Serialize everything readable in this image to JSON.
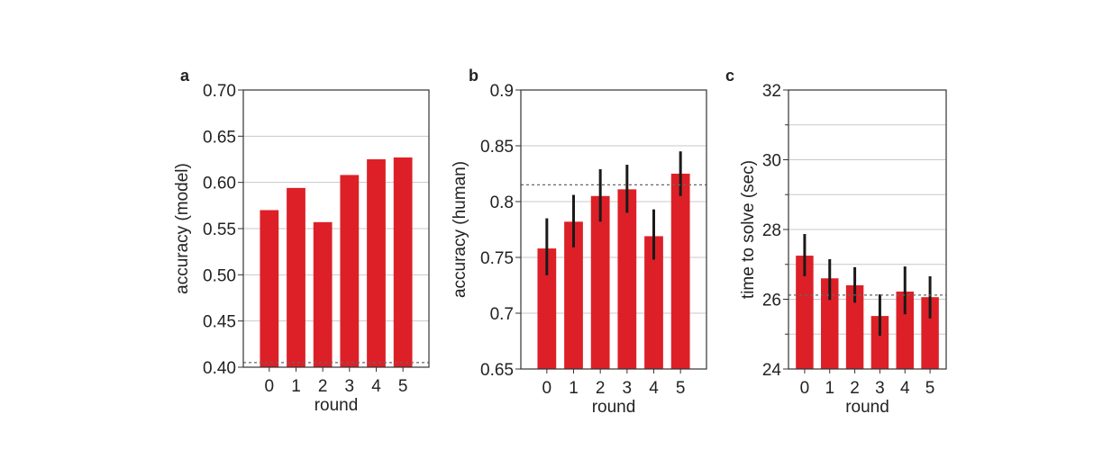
{
  "bar_color": "#dd2027",
  "chart_data": [
    {
      "type": "bar",
      "panel_label": "a",
      "xlabel": "round",
      "ylabel": "accuracy (model)",
      "categories": [
        "0",
        "1",
        "2",
        "3",
        "4",
        "5"
      ],
      "values": [
        0.57,
        0.594,
        0.557,
        0.608,
        0.625,
        0.627
      ],
      "ylim": [
        0.4,
        0.7
      ],
      "yticks": [
        "0.40",
        "0.45",
        "0.50",
        "0.55",
        "0.60",
        "0.65",
        "0.70"
      ],
      "reference_line": 0.405,
      "grid": true
    },
    {
      "type": "bar",
      "panel_label": "b",
      "xlabel": "round",
      "ylabel": "accuracy (human)",
      "categories": [
        "0",
        "1",
        "2",
        "3",
        "4",
        "5"
      ],
      "values": [
        0.758,
        0.782,
        0.805,
        0.811,
        0.769,
        0.825
      ],
      "error_low": [
        0.734,
        0.759,
        0.782,
        0.79,
        0.748,
        0.805
      ],
      "error_high": [
        0.785,
        0.806,
        0.829,
        0.833,
        0.793,
        0.845
      ],
      "ylim": [
        0.65,
        0.9
      ],
      "yticks": [
        "0.65",
        "0.7",
        "0.75",
        "0.8",
        "0.85",
        "0.9"
      ],
      "reference_line": 0.815,
      "grid": true
    },
    {
      "type": "bar",
      "panel_label": "c",
      "xlabel": "round",
      "ylabel": "time to solve (sec)",
      "categories": [
        "0",
        "1",
        "2",
        "3",
        "4",
        "5"
      ],
      "values": [
        27.25,
        26.6,
        26.4,
        25.52,
        26.22,
        26.06
      ],
      "error_low": [
        26.66,
        25.98,
        25.9,
        24.95,
        25.57,
        25.45
      ],
      "error_high": [
        27.87,
        27.15,
        26.92,
        26.14,
        26.94,
        26.66
      ],
      "ylim": [
        24,
        32
      ],
      "yticks": [
        "24",
        "26",
        "28",
        "30",
        "32"
      ],
      "minor_ticks": [
        25,
        27,
        29,
        31
      ],
      "reference_line": 26.12,
      "grid": true
    }
  ]
}
